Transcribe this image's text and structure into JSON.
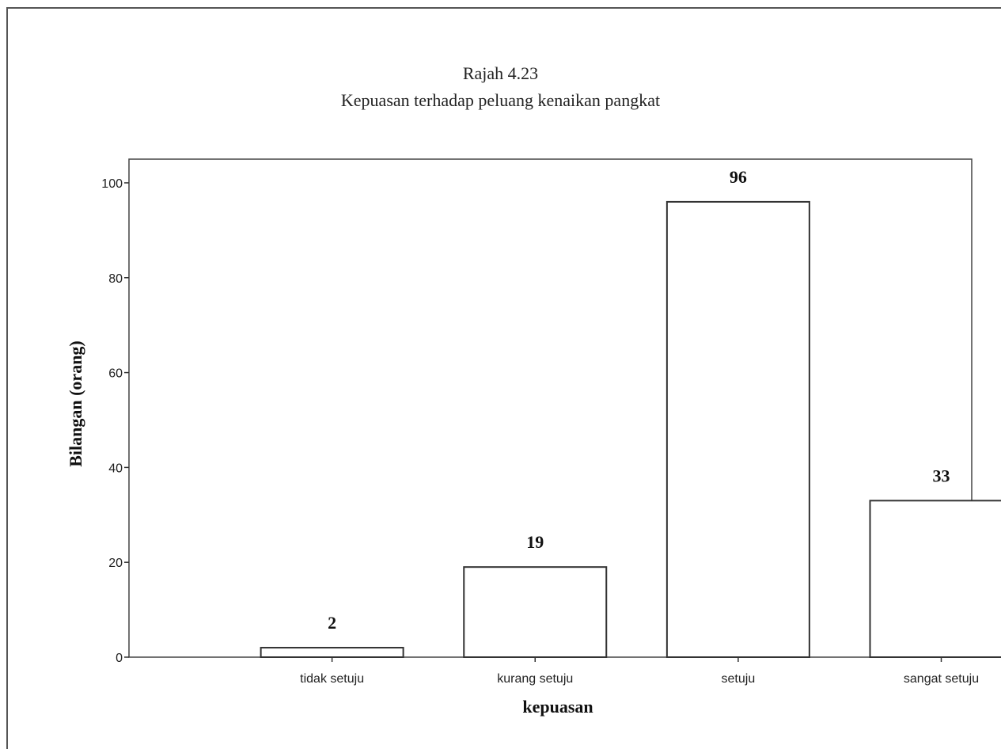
{
  "chart_data": {
    "type": "bar",
    "title": "Rajah 4.23",
    "subtitle": "Kepuasan terhadap peluang kenaikan pangkat",
    "xlabel": "kepuasan",
    "ylabel": "Bilangan (orang)",
    "categories": [
      "tidak setuju",
      "kurang setuju",
      "setuju",
      "sangat setuju"
    ],
    "values": [
      2,
      19,
      96,
      33
    ],
    "data_labels": [
      "2",
      "19",
      "96",
      "33"
    ],
    "ylim": [
      0,
      105
    ],
    "yticks": [
      0,
      20,
      40,
      60,
      80,
      100
    ],
    "grid": false,
    "bar_fill": "#ffffff",
    "bar_stroke": "#333333"
  }
}
